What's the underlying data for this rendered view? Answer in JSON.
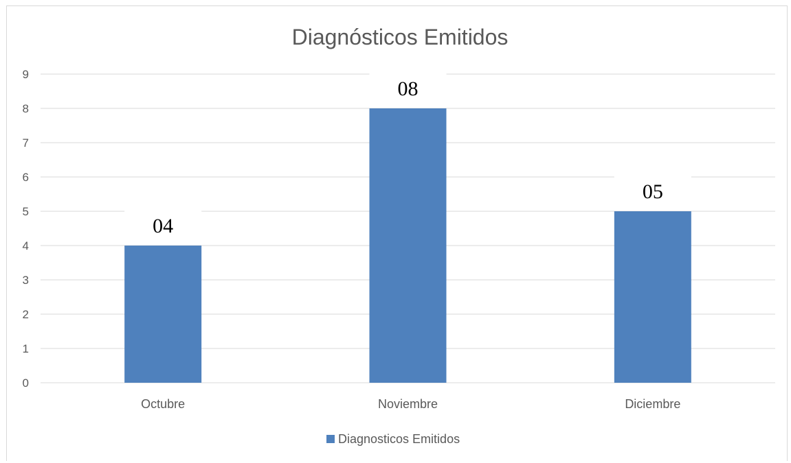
{
  "chart_data": {
    "type": "bar",
    "title": "Diagnósticos Emitidos",
    "categories": [
      "Octubre",
      "Noviembre",
      "Diciembre"
    ],
    "series": [
      {
        "name": "Diagnosticos Emitidos",
        "values": [
          4,
          8,
          5
        ],
        "color": "#4f81bd"
      }
    ],
    "data_labels": [
      "04",
      "08",
      "05"
    ],
    "ylim": [
      0,
      9
    ],
    "yticks": [
      0,
      1,
      2,
      3,
      4,
      5,
      6,
      7,
      8,
      9
    ],
    "grid": true,
    "legend": "bottom"
  }
}
